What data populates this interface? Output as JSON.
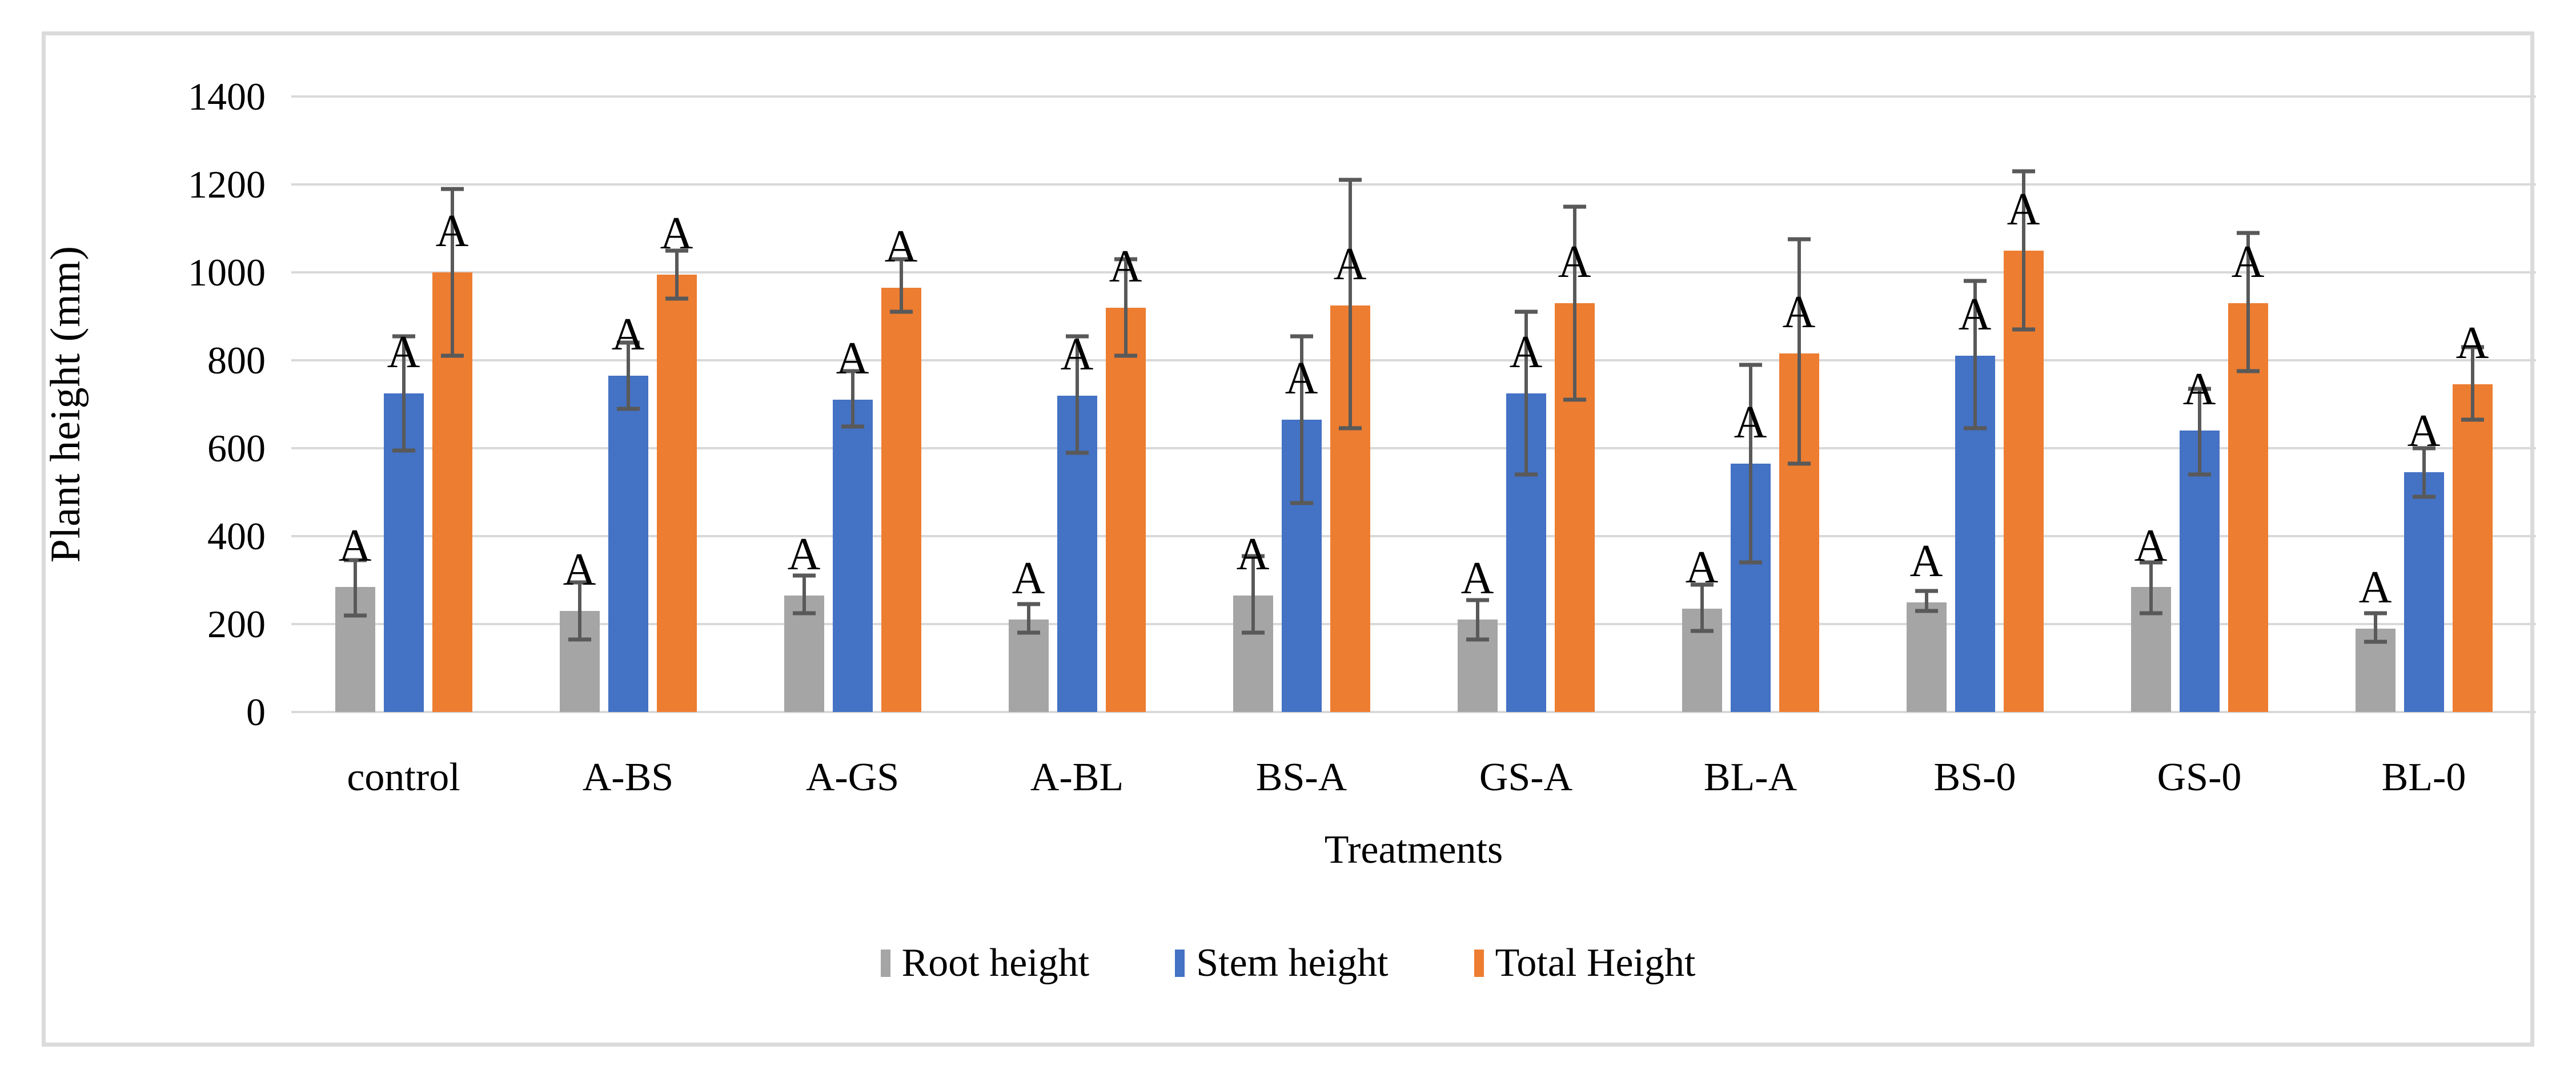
{
  "chart_data": {
    "type": "bar",
    "title": "",
    "xlabel": "Treatments",
    "ylabel": "Plant height (mm)",
    "ylim": [
      0,
      1400
    ],
    "yticks": [
      0,
      200,
      400,
      600,
      800,
      1000,
      1200,
      1400
    ],
    "grid": true,
    "legend_position": "bottom-center",
    "significance_letter": "A",
    "error_bar_color": "#595959",
    "gridline_color": "#d9d9d9",
    "frame_border_color": "#dbdbdb",
    "categories": [
      "control",
      "A-BS",
      "A-GS",
      "A-BL",
      "BS-A",
      "GS-A",
      "BL-A",
      "BS-0",
      "GS-0",
      "BL-0"
    ],
    "series": [
      {
        "name": "Root height",
        "color": "#a5a5a5",
        "values": [
          285,
          230,
          265,
          210,
          265,
          210,
          235,
          250,
          285,
          190
        ],
        "error_low": [
          220,
          165,
          225,
          180,
          180,
          165,
          185,
          230,
          225,
          160
        ],
        "error_high": [
          345,
          295,
          310,
          245,
          355,
          255,
          290,
          275,
          340,
          225
        ]
      },
      {
        "name": "Stem height",
        "color": "#4472c4",
        "values": [
          725,
          765,
          710,
          720,
          665,
          725,
          565,
          810,
          640,
          545
        ],
        "error_low": [
          595,
          690,
          650,
          590,
          475,
          540,
          340,
          645,
          540,
          490
        ],
        "error_high": [
          855,
          840,
          775,
          855,
          855,
          910,
          790,
          980,
          735,
          600
        ]
      },
      {
        "name": "Total Height",
        "color": "#ed7d31",
        "values": [
          1000,
          995,
          965,
          920,
          925,
          930,
          815,
          1050,
          930,
          745
        ],
        "error_low": [
          810,
          940,
          910,
          810,
          645,
          710,
          565,
          870,
          775,
          665
        ],
        "error_high": [
          1190,
          1050,
          1030,
          1030,
          1210,
          1150,
          1075,
          1230,
          1090,
          830
        ]
      }
    ]
  }
}
